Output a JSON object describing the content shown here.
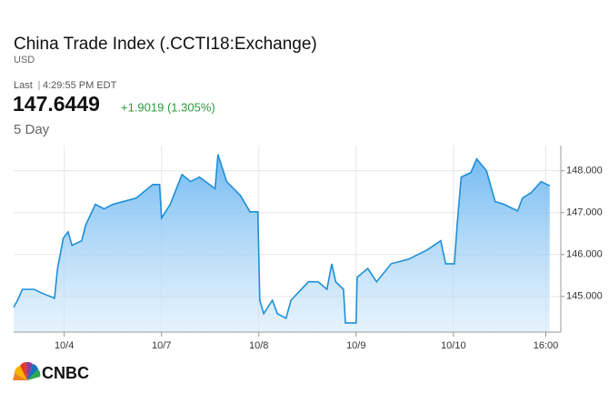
{
  "header": {
    "title": "China Trade Index (.CCTI18:Exchange)",
    "currency": "USD",
    "last_label": "Last",
    "time": "4:29:55 PM EDT",
    "price": "147.6449",
    "change": "+1.9019 (1.305%)",
    "range": "5 Day",
    "brand": "CNBC"
  },
  "chart_data": {
    "type": "line",
    "color": "#1e8fd8",
    "grid": true,
    "x": [
      -0.52,
      -0.48,
      -0.43,
      -0.31,
      -0.24,
      -0.1,
      -0.07,
      -0.01,
      0.04,
      0.08,
      0.18,
      0.22,
      0.32,
      0.41,
      0.5,
      0.6,
      0.74,
      0.91,
      0.98,
      1.0,
      1.09,
      1.21,
      1.3,
      1.39,
      1.55,
      1.58,
      1.67,
      1.81,
      1.91,
      1.99,
      2.01,
      2.05,
      2.14,
      2.19,
      2.28,
      2.33,
      2.42,
      2.51,
      2.61,
      2.7,
      2.75,
      2.79,
      2.87,
      2.89,
      3.0,
      3.01,
      3.12,
      3.21,
      3.36,
      3.54,
      3.73,
      3.87,
      3.92,
      4.01,
      4.04,
      4.08,
      4.18,
      4.24,
      4.34,
      4.43,
      4.52,
      4.66,
      4.71,
      4.8,
      4.9,
      4.99
    ],
    "series": [
      {
        "name": "China Trade Index",
        "color": "#1e8fd8",
        "values": [
          144.74,
          144.91,
          145.17,
          145.17,
          145.09,
          144.96,
          145.65,
          146.39,
          146.54,
          146.22,
          146.33,
          146.7,
          147.2,
          147.09,
          147.2,
          147.26,
          147.35,
          147.67,
          147.67,
          146.87,
          147.2,
          147.91,
          147.74,
          147.85,
          147.57,
          148.39,
          147.74,
          147.41,
          147.02,
          147.02,
          144.91,
          144.59,
          144.91,
          144.59,
          144.48,
          144.91,
          145.13,
          145.35,
          145.35,
          145.17,
          145.78,
          145.35,
          145.17,
          144.37,
          144.37,
          145.46,
          145.67,
          145.35,
          145.78,
          145.89,
          146.11,
          146.33,
          145.78,
          145.78,
          146.76,
          147.85,
          147.96,
          148.28,
          148.0,
          147.26,
          147.2,
          147.04,
          147.35,
          147.48,
          147.74,
          147.64
        ]
      }
    ],
    "xlim": [
      -0.52,
      5.02
    ],
    "xticks": [
      {
        "value": 0,
        "label": "10/4"
      },
      {
        "value": 1,
        "label": "10/7"
      },
      {
        "value": 2,
        "label": "10/8"
      },
      {
        "value": 3,
        "label": "10/9"
      },
      {
        "value": 4,
        "label": "10/10"
      },
      {
        "value": 4.95,
        "label": "16:00"
      }
    ],
    "ylim": [
      144.15,
      148.6
    ],
    "yticks": [
      {
        "value": 145,
        "label": "145.000"
      },
      {
        "value": 146,
        "label": "146.000"
      },
      {
        "value": 147,
        "label": "147.000"
      },
      {
        "value": 148,
        "label": "148.000"
      }
    ]
  }
}
